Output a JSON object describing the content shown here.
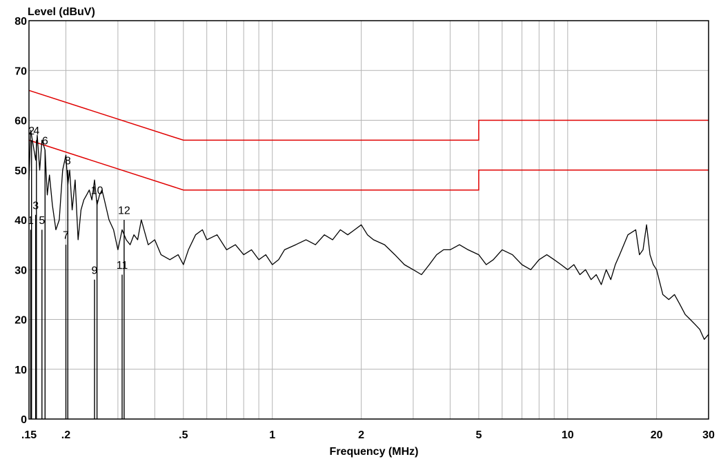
{
  "chart_data": {
    "type": "line",
    "ylabel": "Level (dBuV)",
    "xlabel": "Frequency (MHz)",
    "xscale": "log",
    "xlim": [
      0.15,
      30
    ],
    "ylim": [
      0,
      80
    ],
    "grid": true,
    "x_ticks": [
      {
        "value": 0.15,
        "label": ".15"
      },
      {
        "value": 0.2,
        "label": ".2"
      },
      {
        "value": 0.5,
        "label": ".5"
      },
      {
        "value": 1,
        "label": "1"
      },
      {
        "value": 2,
        "label": "2"
      },
      {
        "value": 5,
        "label": "5"
      },
      {
        "value": 10,
        "label": "10"
      },
      {
        "value": 20,
        "label": "20"
      },
      {
        "value": 30,
        "label": "30"
      }
    ],
    "x_minor_grid": [
      0.15,
      0.2,
      0.3,
      0.4,
      0.5,
      0.6,
      0.7,
      0.8,
      0.9,
      1,
      2,
      3,
      4,
      5,
      6,
      7,
      8,
      9,
      10,
      20,
      30
    ],
    "y_ticks": [
      0,
      10,
      20,
      30,
      40,
      50,
      60,
      70,
      80
    ],
    "colors": {
      "limit": "#e00000",
      "trace": "#000000",
      "grid": "#b4b4b4",
      "frame": "#000000"
    },
    "limit_lines": [
      {
        "x": [
          0.15,
          0.5,
          5,
          5,
          30
        ],
        "y": [
          66,
          56,
          56,
          60,
          60
        ]
      },
      {
        "x": [
          0.15,
          0.5,
          5,
          5,
          30
        ],
        "y": [
          56,
          46,
          46,
          50,
          50
        ]
      }
    ],
    "trace": {
      "x": [
        0.15,
        0.152,
        0.155,
        0.158,
        0.16,
        0.163,
        0.166,
        0.17,
        0.173,
        0.176,
        0.18,
        0.185,
        0.19,
        0.195,
        0.2,
        0.203,
        0.206,
        0.21,
        0.215,
        0.22,
        0.225,
        0.23,
        0.235,
        0.24,
        0.245,
        0.25,
        0.255,
        0.26,
        0.265,
        0.27,
        0.28,
        0.29,
        0.3,
        0.31,
        0.32,
        0.33,
        0.34,
        0.35,
        0.36,
        0.38,
        0.4,
        0.42,
        0.45,
        0.48,
        0.5,
        0.52,
        0.55,
        0.58,
        0.6,
        0.65,
        0.7,
        0.75,
        0.8,
        0.85,
        0.9,
        0.95,
        1.0,
        1.05,
        1.1,
        1.2,
        1.3,
        1.4,
        1.5,
        1.6,
        1.7,
        1.8,
        1.9,
        2.0,
        2.1,
        2.2,
        2.4,
        2.6,
        2.8,
        3.0,
        3.2,
        3.4,
        3.6,
        3.8,
        4.0,
        4.3,
        4.6,
        5.0,
        5.3,
        5.6,
        6.0,
        6.5,
        7.0,
        7.5,
        8.0,
        8.5,
        9.0,
        9.5,
        10,
        10.5,
        11,
        11.5,
        12,
        12.5,
        13,
        13.5,
        14,
        14.5,
        15,
        16,
        17,
        17.5,
        18,
        18.5,
        19,
        19.5,
        20,
        21,
        22,
        23,
        24,
        25,
        26,
        27,
        28,
        29,
        30
      ],
      "y": [
        48,
        58,
        55,
        52,
        57,
        50,
        56,
        54,
        45,
        49,
        43,
        38,
        40,
        50,
        53,
        47,
        50,
        42,
        48,
        36,
        42,
        44,
        45,
        46,
        44,
        48,
        43,
        45,
        46,
        44,
        40,
        38,
        34,
        38,
        36,
        35,
        37,
        36,
        40,
        35,
        36,
        33,
        32,
        33,
        31,
        34,
        37,
        38,
        36,
        37,
        34,
        35,
        33,
        34,
        32,
        33,
        31,
        32,
        34,
        35,
        36,
        35,
        37,
        36,
        38,
        37,
        38,
        39,
        37,
        36,
        35,
        33,
        31,
        30,
        29,
        31,
        33,
        34,
        34,
        35,
        34,
        33,
        31,
        32,
        34,
        33,
        31,
        30,
        32,
        33,
        32,
        31,
        30,
        31,
        29,
        30,
        28,
        29,
        27,
        30,
        28,
        31,
        33,
        37,
        38,
        33,
        34,
        39,
        33,
        31,
        30,
        25,
        24,
        25,
        23,
        21,
        20,
        19,
        18,
        16,
        17
      ]
    },
    "markers": [
      {
        "id": "1",
        "x": 0.152,
        "y": 40
      },
      {
        "id": "2",
        "x": 0.153,
        "y": 58
      },
      {
        "id": "3",
        "x": 0.158,
        "y": 43
      },
      {
        "id": "4",
        "x": 0.159,
        "y": 58
      },
      {
        "id": "5",
        "x": 0.166,
        "y": 40
      },
      {
        "id": "6",
        "x": 0.17,
        "y": 56
      },
      {
        "id": "7",
        "x": 0.2,
        "y": 37
      },
      {
        "id": "8",
        "x": 0.203,
        "y": 52
      },
      {
        "id": "9",
        "x": 0.25,
        "y": 30
      },
      {
        "id": "10",
        "x": 0.255,
        "y": 46
      },
      {
        "id": "11",
        "x": 0.31,
        "y": 31
      },
      {
        "id": "12",
        "x": 0.315,
        "y": 42
      }
    ]
  }
}
